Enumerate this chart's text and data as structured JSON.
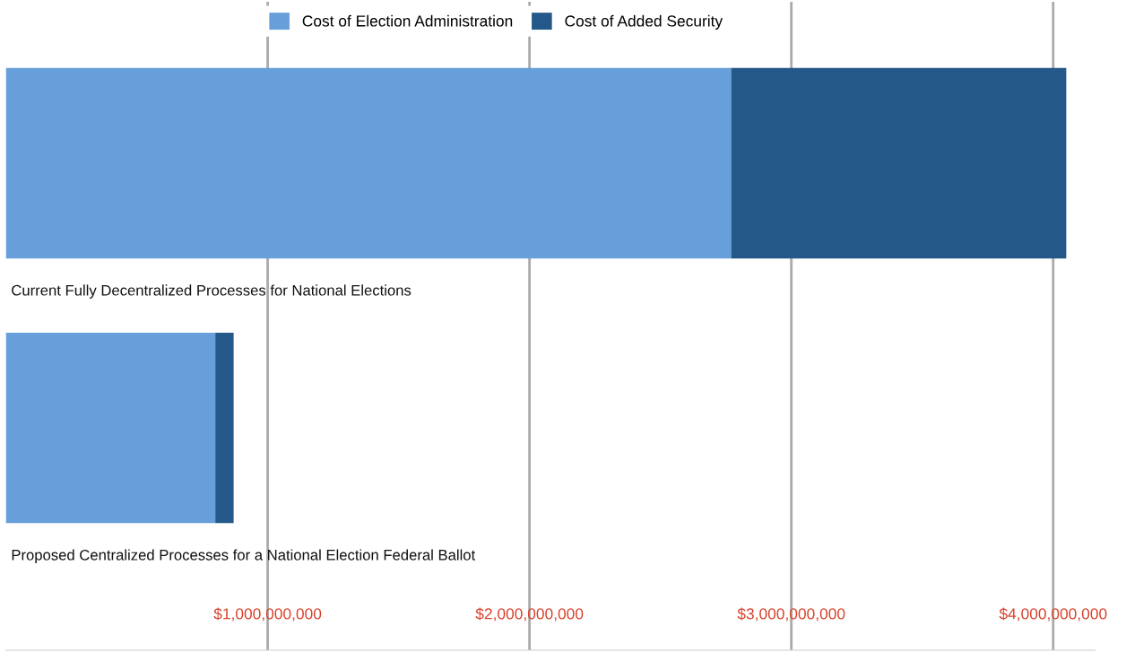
{
  "chart_data": {
    "type": "bar",
    "orientation": "horizontal",
    "stacked": true,
    "categories": [
      "Current Fully Decentralized Processes for National Elections",
      "Proposed Centralized Processes for a National Election Federal Ballot"
    ],
    "series": [
      {
        "name": "Cost of Election Administration",
        "color": "#669fd9",
        "values": [
          2770000000,
          800000000
        ]
      },
      {
        "name": "Cost of Added Security",
        "color": "#245889",
        "values": [
          1280000000,
          70000000
        ]
      }
    ],
    "xlim": [
      0,
      4160000000
    ],
    "xticks": [
      {
        "value": 1000000000,
        "label": "$1,000,000,000"
      },
      {
        "value": 2000000000,
        "label": "$2,000,000,000"
      },
      {
        "value": 3000000000,
        "label": "$3,000,000,000"
      },
      {
        "value": 4000000000,
        "label": "$4,000,000,000"
      }
    ],
    "grid": "x",
    "legend": "top"
  }
}
